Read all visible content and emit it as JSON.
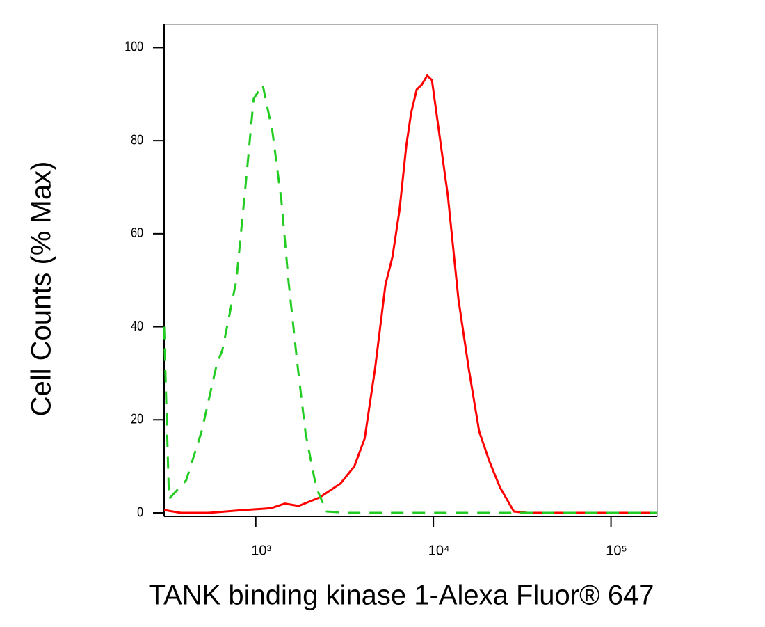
{
  "chart_data": {
    "type": "line",
    "xlabel": "TANK binding kinase 1-Alexa Fluor® 647",
    "ylabel": "Cell Counts (% Max)",
    "xscale": "log",
    "xlim": [
      305,
      182000
    ],
    "ylim": [
      -0.75,
      105
    ],
    "xticks": [
      {
        "value": 1000,
        "label": "10³"
      },
      {
        "value": 10000,
        "label": "10⁴"
      },
      {
        "value": 100000,
        "label": "10⁵"
      }
    ],
    "yticks": [
      0,
      20,
      40,
      60,
      80,
      100
    ],
    "series": [
      {
        "color": "#ff0000",
        "dash": false,
        "x": [
          305,
          379,
          542,
          851,
          1219,
          1459,
          1746,
          2287,
          2997,
          3590,
          4105,
          4695,
          5372,
          5884,
          6442,
          7047,
          7500,
          8060,
          8590,
          9230,
          9820,
          10750,
          12080,
          13830,
          15810,
          18110,
          20710,
          23710,
          28390,
          33970,
          182000
        ],
        "values": [
          0.6,
          0,
          0,
          0.6,
          1,
          2,
          1.5,
          3.3,
          6.3,
          10,
          16,
          31,
          49,
          55,
          65,
          79,
          86,
          91,
          92,
          94,
          93,
          82,
          68,
          46,
          31,
          17.5,
          11,
          5.5,
          0.3,
          0,
          0
        ]
      },
      {
        "color": "#22cc22",
        "dash": true,
        "x": [
          305,
          325,
          406,
          496,
          604,
          649,
          778,
          890,
          973,
          1094,
          1241,
          1396,
          1527,
          1715,
          1910,
          2188,
          2502,
          3281,
          182000
        ],
        "values": [
          40,
          3,
          7,
          17.5,
          32,
          35,
          50,
          73,
          89,
          92,
          82,
          67,
          50,
          32,
          17,
          5.5,
          0.3,
          0,
          0
        ]
      }
    ]
  }
}
